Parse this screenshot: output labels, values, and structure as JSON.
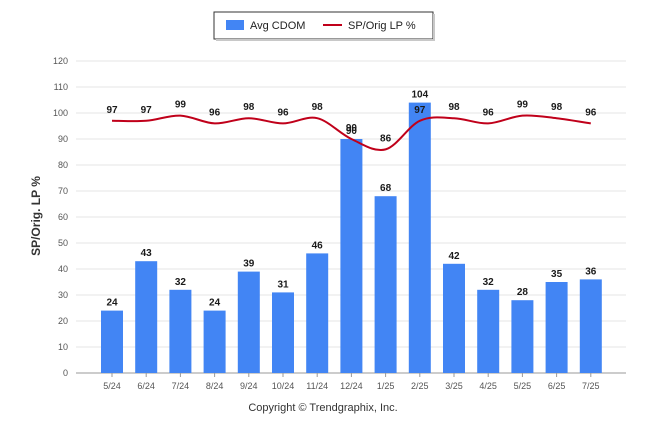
{
  "chart_data": {
    "type": "bar",
    "categories": [
      "5/24",
      "6/24",
      "7/24",
      "8/24",
      "9/24",
      "10/24",
      "11/24",
      "12/24",
      "1/25",
      "2/25",
      "3/25",
      "4/25",
      "5/25",
      "6/25",
      "7/25"
    ],
    "series": [
      {
        "name": "Avg CDOM",
        "type": "bar",
        "color": "#4285f4",
        "values": [
          24,
          43,
          32,
          24,
          39,
          31,
          46,
          90,
          68,
          104,
          42,
          32,
          28,
          35,
          36
        ]
      },
      {
        "name": "SP/Orig LP %",
        "type": "line",
        "color": "#c0001a",
        "values": [
          97,
          97,
          99,
          96,
          98,
          96,
          98,
          90,
          86,
          97,
          98,
          96,
          99,
          98,
          96
        ]
      }
    ],
    "ylabel": "SP/Orig. LP %",
    "ylim": [
      0,
      120
    ],
    "yticks": [
      0,
      10,
      20,
      30,
      40,
      50,
      60,
      70,
      80,
      90,
      100,
      110,
      120
    ],
    "grid": true,
    "legend": "top-center"
  },
  "footer": "Copyright © Trendgraphix, Inc."
}
